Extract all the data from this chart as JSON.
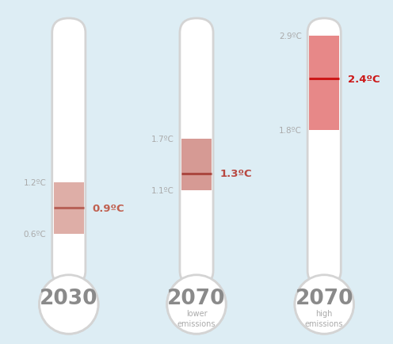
{
  "background_color": "#ddedf4",
  "thermometers": [
    {
      "label_year": "2030",
      "label_sub": "",
      "low": 0.6,
      "high": 1.2,
      "median": 0.9,
      "low_label": "0.6ºC",
      "high_label": "1.2ºC",
      "median_label": "0.9ºC",
      "color_light": "#d4938a",
      "color_dark": "#b86258",
      "label_color": "#c06050"
    },
    {
      "label_year": "2070",
      "label_sub": "lower\nemissions",
      "low": 1.1,
      "high": 1.7,
      "median": 1.3,
      "low_label": "1.1ºC",
      "high_label": "1.7ºC",
      "median_label": "1.3ºC",
      "color_light": "#c97870",
      "color_dark": "#ab4840",
      "label_color": "#b84840"
    },
    {
      "label_year": "2070",
      "label_sub": "high\nemissions",
      "low": 1.8,
      "high": 2.9,
      "median": 2.4,
      "low_label": "1.8ºC",
      "high_label": "2.9ºC",
      "median_label": "2.4ºC",
      "color_light": "#e06060",
      "color_dark": "#cc1818",
      "label_color": "#cc1818"
    }
  ],
  "tube_color": "#ffffff",
  "tube_border_color": "#d4d4d4",
  "label_gray": "#aaaaaa",
  "year_color": "#8a8a8a",
  "sub_label_color": "#aaaaaa",
  "temp_min": 0.0,
  "temp_max": 3.1
}
